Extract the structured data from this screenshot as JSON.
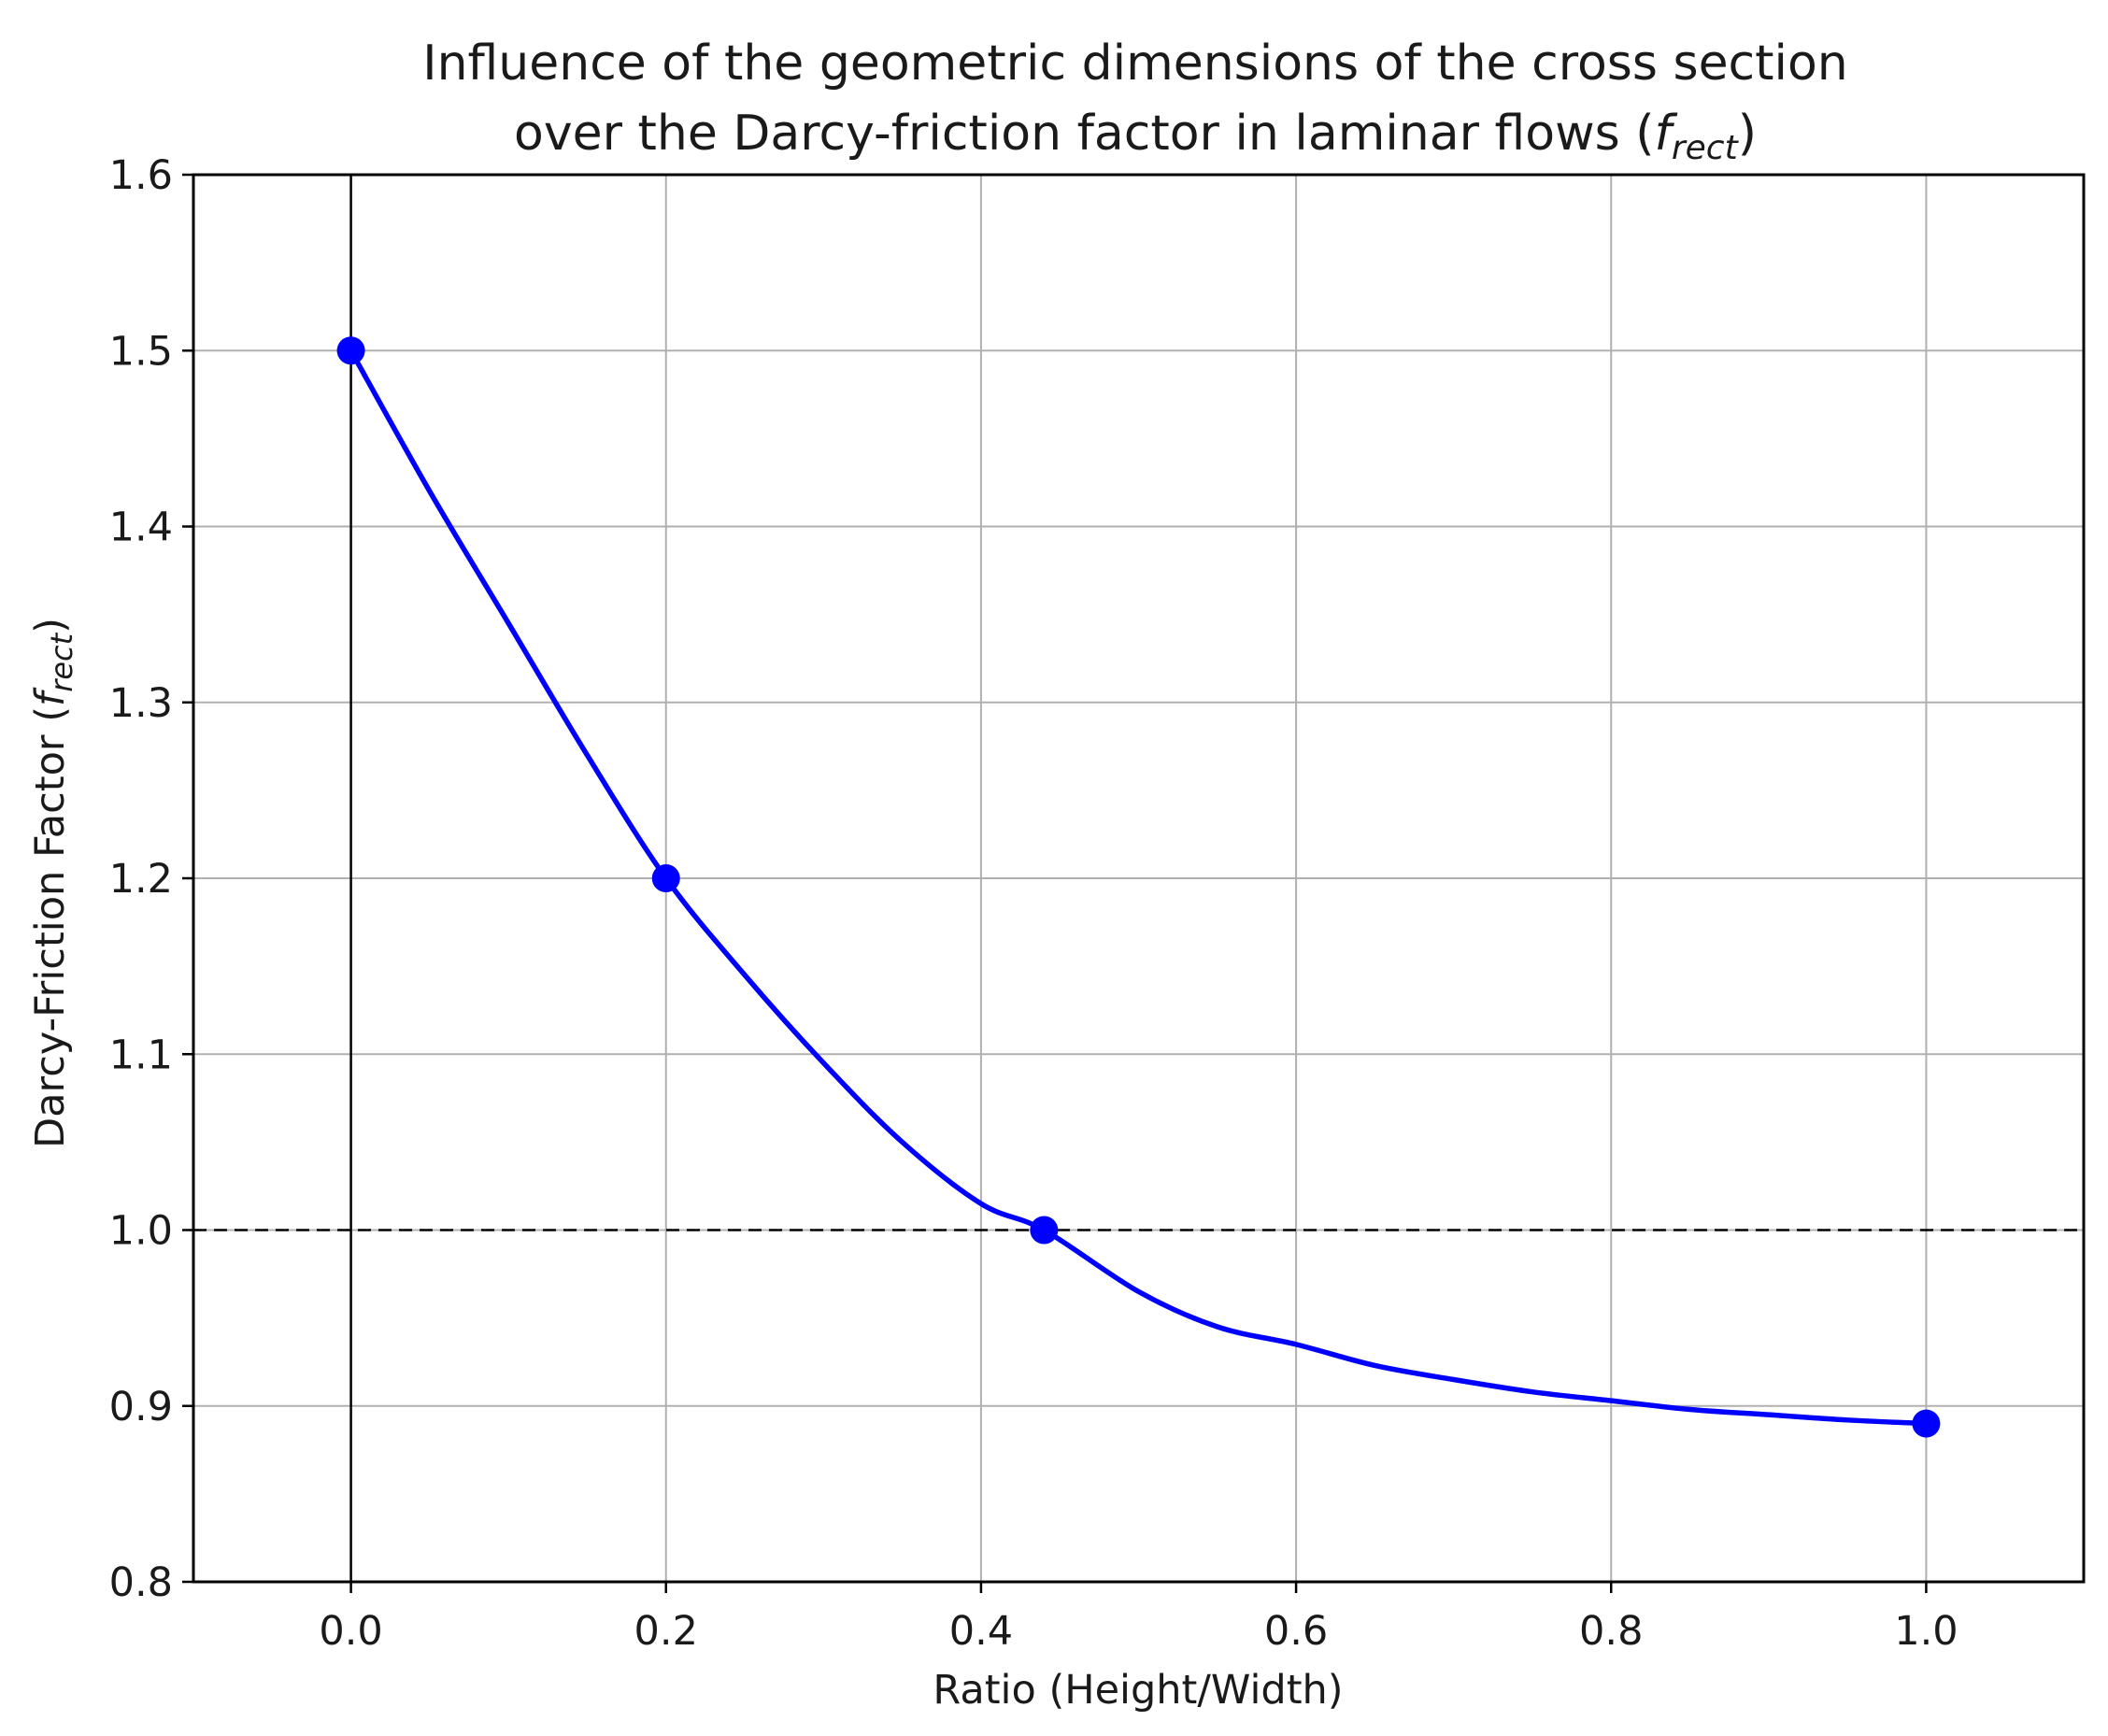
{
  "chart_data": {
    "type": "line",
    "title": {
      "line1": "Influence of the geometric dimensions of the cross section",
      "line2_prefix": "over the Darcy-friction factor in laminar flows (",
      "symbol": "f",
      "subscript": "rect",
      "line2_suffix": ")"
    },
    "xlabel": "Ratio (Height/Width)",
    "ylabel": {
      "prefix": "Darcy-Friction Factor  (",
      "symbol": "f",
      "subscript": "rect",
      "suffix": ")"
    },
    "xlim": [
      -0.1,
      1.1
    ],
    "ylim": [
      0.8,
      1.6
    ],
    "x_ticks": [
      0.0,
      0.2,
      0.4,
      0.6,
      0.8,
      1.0
    ],
    "x_tick_labels": [
      "0.0",
      "0.2",
      "0.4",
      "0.6",
      "0.8",
      "1.0"
    ],
    "y_ticks": [
      0.8,
      0.9,
      1.0,
      1.1,
      1.2,
      1.3,
      1.4,
      1.5,
      1.6
    ],
    "y_tick_labels": [
      "0.8",
      "0.9",
      "1.0",
      "1.1",
      "1.2",
      "1.3",
      "1.4",
      "1.5",
      "1.6"
    ],
    "grid": true,
    "reference_lines": {
      "vertical_x": 0.0,
      "horizontal_y": 1.0,
      "horizontal_style": "dashed"
    },
    "series": [
      {
        "color": "#0000ff",
        "curve": {
          "x": [
            0.0,
            0.05,
            0.1,
            0.15,
            0.2,
            0.25,
            0.3,
            0.35,
            0.4,
            0.44,
            0.5,
            0.55,
            0.6,
            0.65,
            0.7,
            0.75,
            0.8,
            0.85,
            0.9,
            0.95,
            1.0
          ],
          "y": [
            1.5,
            1.42,
            1.345,
            1.27,
            1.2,
            1.145,
            1.095,
            1.05,
            1.015,
            1.0,
            0.965,
            0.945,
            0.935,
            0.923,
            0.915,
            0.908,
            0.903,
            0.898,
            0.895,
            0.892,
            0.89
          ]
        },
        "points": {
          "x": [
            0.0,
            0.2,
            0.44,
            1.0
          ],
          "y": [
            1.5,
            1.2,
            1.0,
            0.89
          ]
        }
      }
    ]
  }
}
